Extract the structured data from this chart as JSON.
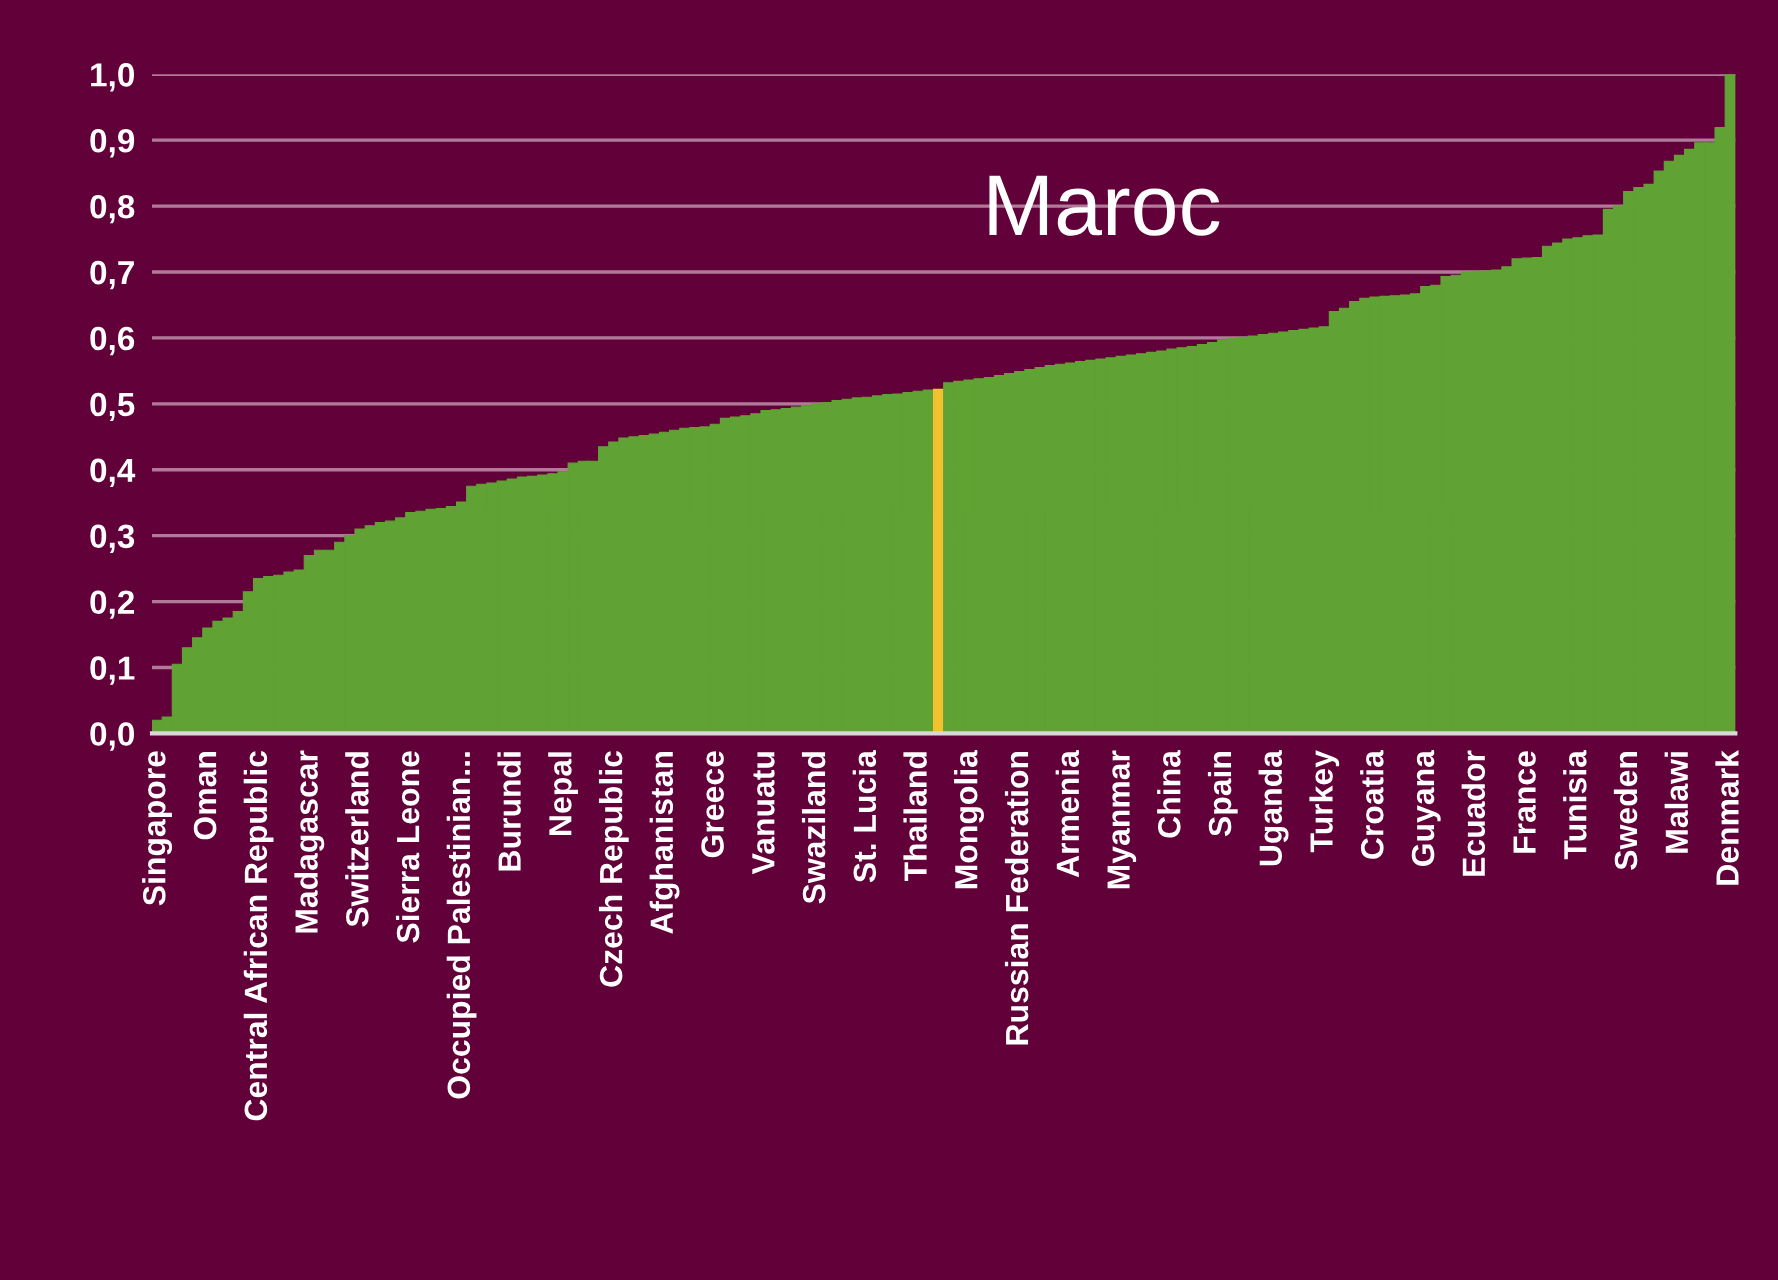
{
  "chart_data": {
    "type": "bar",
    "categories": [
      "Singapore",
      null,
      null,
      null,
      null,
      "Oman",
      null,
      null,
      null,
      null,
      "Central African Republic",
      null,
      null,
      null,
      null,
      "Madagascar",
      null,
      null,
      null,
      null,
      "Switzerland",
      null,
      null,
      null,
      null,
      "Sierra Leone",
      null,
      null,
      null,
      null,
      "Occupied Palestinian...",
      null,
      null,
      null,
      null,
      "Burundi",
      null,
      null,
      null,
      null,
      "Nepal",
      null,
      null,
      null,
      null,
      "Czech Republic",
      null,
      null,
      null,
      null,
      "Afghanistan",
      null,
      null,
      null,
      null,
      "Greece",
      null,
      null,
      null,
      null,
      "Vanuatu",
      null,
      null,
      null,
      null,
      "Swaziland",
      null,
      null,
      null,
      null,
      "St. Lucia",
      null,
      null,
      null,
      null,
      "Thailand",
      null,
      null,
      null,
      null,
      "Mongolia",
      null,
      null,
      null,
      null,
      "Russian Federation",
      null,
      null,
      null,
      null,
      "Armenia",
      null,
      null,
      null,
      null,
      "Myanmar",
      null,
      null,
      null,
      null,
      "China",
      null,
      null,
      null,
      null,
      "Spain",
      null,
      null,
      null,
      null,
      "Uganda",
      null,
      null,
      null,
      null,
      "Turkey",
      null,
      null,
      null,
      null,
      "Croatia",
      null,
      null,
      null,
      null,
      "Guyana",
      null,
      null,
      null,
      null,
      "Ecuador",
      null,
      null,
      null,
      null,
      "France",
      null,
      null,
      null,
      null,
      "Tunisia",
      null,
      null,
      null,
      null,
      "Sweden",
      null,
      null,
      null,
      null,
      "Malawi",
      null,
      null,
      null,
      null,
      "Denmark"
    ],
    "values": [
      0.02,
      0.025,
      0.105,
      0.13,
      0.145,
      0.16,
      0.17,
      0.175,
      0.185,
      0.215,
      0.235,
      0.238,
      0.24,
      0.245,
      0.248,
      0.27,
      0.278,
      0.278,
      0.29,
      0.3,
      0.31,
      0.315,
      0.32,
      0.322,
      0.327,
      0.335,
      0.337,
      0.34,
      0.341,
      0.344,
      0.351,
      0.375,
      0.378,
      0.38,
      0.383,
      0.386,
      0.389,
      0.39,
      0.392,
      0.394,
      0.397,
      0.41,
      0.413,
      0.413,
      0.435,
      0.442,
      0.448,
      0.45,
      0.452,
      0.454,
      0.457,
      0.46,
      0.463,
      0.464,
      0.465,
      0.469,
      0.478,
      0.48,
      0.482,
      0.485,
      0.49,
      0.491,
      0.493,
      0.495,
      0.497,
      0.5,
      0.502,
      0.505,
      0.507,
      0.509,
      0.51,
      0.512,
      0.514,
      0.515,
      0.517,
      0.519,
      0.521,
      0.522,
      0.532,
      0.534,
      0.536,
      0.538,
      0.54,
      0.543,
      0.546,
      0.549,
      0.552,
      0.555,
      0.558,
      0.56,
      0.562,
      0.564,
      0.566,
      0.568,
      0.57,
      0.572,
      0.574,
      0.576,
      0.578,
      0.58,
      0.583,
      0.585,
      0.587,
      0.59,
      0.593,
      0.597,
      0.599,
      0.601,
      0.603,
      0.605,
      0.607,
      0.609,
      0.611,
      0.613,
      0.615,
      0.617,
      0.64,
      0.645,
      0.655,
      0.66,
      0.662,
      0.663,
      0.664,
      0.665,
      0.667,
      0.678,
      0.68,
      0.693,
      0.695,
      0.7,
      0.701,
      0.702,
      0.703,
      0.708,
      0.72,
      0.721,
      0.722,
      0.739,
      0.744,
      0.75,
      0.752,
      0.755,
      0.756,
      0.795,
      0.8,
      0.822,
      0.828,
      0.833,
      0.853,
      0.868,
      0.877,
      0.886,
      0.896,
      0.896,
      0.919,
      1.0
    ],
    "colors": [
      "#60a334",
      "#60a334",
      "#60a334",
      "#60a334",
      "#60a334",
      "#60a334",
      "#60a334",
      "#60a334",
      "#60a334",
      "#60a334",
      "#60a334",
      "#60a334",
      "#60a334",
      "#60a334",
      "#60a334",
      "#60a334",
      "#60a334",
      "#60a334",
      "#60a334",
      "#60a334",
      "#60a334",
      "#60a334",
      "#60a334",
      "#60a334",
      "#60a334",
      "#60a334",
      "#60a334",
      "#60a334",
      "#60a334",
      "#60a334",
      "#60a334",
      "#60a334",
      "#60a334",
      "#60a334",
      "#60a334",
      "#60a334",
      "#60a334",
      "#60a334",
      "#60a334",
      "#60a334",
      "#60a334",
      "#60a334",
      "#60a334",
      "#60a334",
      "#60a334",
      "#60a334",
      "#60a334",
      "#60a334",
      "#60a334",
      "#60a334",
      "#60a334",
      "#60a334",
      "#60a334",
      "#60a334",
      "#60a334",
      "#60a334",
      "#60a334",
      "#60a334",
      "#60a334",
      "#60a334",
      "#60a334",
      "#60a334",
      "#60a334",
      "#60a334",
      "#60a334",
      "#60a334",
      "#60a334",
      "#60a334",
      "#60a334",
      "#60a334",
      "#60a334",
      "#60a334",
      "#60a334",
      "#60a334",
      "#60a334",
      "#60a334",
      "#60a334",
      "#f2c12e",
      "#60a334",
      "#60a334",
      "#60a334",
      "#60a334",
      "#60a334",
      "#60a334",
      "#60a334",
      "#60a334",
      "#60a334",
      "#60a334",
      "#60a334",
      "#60a334",
      "#60a334",
      "#60a334",
      "#60a334",
      "#60a334",
      "#60a334",
      "#60a334",
      "#60a334",
      "#60a334",
      "#60a334",
      "#60a334",
      "#60a334",
      "#60a334",
      "#60a334",
      "#60a334",
      "#60a334",
      "#60a334",
      "#60a334",
      "#60a334",
      "#60a334",
      "#60a334",
      "#60a334",
      "#60a334",
      "#60a334",
      "#60a334",
      "#60a334",
      "#60a334",
      "#60a334",
      "#60a334",
      "#60a334",
      "#60a334",
      "#60a334",
      "#60a334",
      "#60a334",
      "#60a334",
      "#60a334",
      "#60a334",
      "#60a334",
      "#60a334",
      "#60a334",
      "#60a334",
      "#60a334",
      "#60a334",
      "#60a334",
      "#60a334",
      "#60a334",
      "#60a334",
      "#60a334",
      "#60a334",
      "#60a334",
      "#60a334",
      "#60a334",
      "#60a334",
      "#60a334",
      "#60a334",
      "#60a334",
      "#60a334",
      "#60a334",
      "#60a334",
      "#60a334",
      "#60a334",
      "#60a334",
      "#60a334",
      "#60a334",
      "#60a334",
      "#60a334",
      "#60a334"
    ],
    "ylim": [
      0,
      1
    ],
    "yticks": [
      {
        "value": 0,
        "label": "0,0"
      },
      {
        "value": 0.1,
        "label": "0,1"
      },
      {
        "value": 0.2,
        "label": "0,2"
      },
      {
        "value": 0.3,
        "label": "0,3"
      },
      {
        "value": 0.4,
        "label": "0,4"
      },
      {
        "value": 0.5,
        "label": "0,5"
      },
      {
        "value": 0.6,
        "label": "0,6"
      },
      {
        "value": 0.7,
        "label": "0,7"
      },
      {
        "value": 0.8,
        "label": "0,8"
      },
      {
        "value": 0.9,
        "label": "0,9"
      },
      {
        "value": 1,
        "label": "1,0"
      }
    ],
    "grid": "y",
    "annotations": [
      "Maroc"
    ]
  }
}
